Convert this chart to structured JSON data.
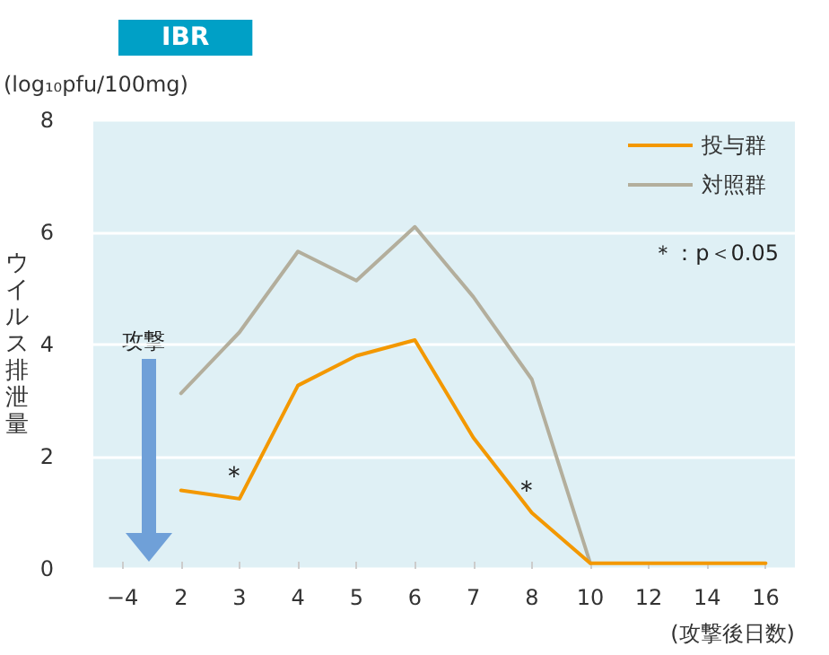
{
  "chart_data": {
    "type": "line",
    "title": "IBR",
    "ylabel": "ウイルス排泄量",
    "xlabel": "(攻撃後日数)",
    "categories": [
      "−4",
      "2",
      "3",
      "4",
      "5",
      "6",
      "7",
      "8",
      "10",
      "12",
      "14",
      "16"
    ],
    "series": [
      {
        "name": "投与群",
        "color": "#f39800",
        "values": [
          null,
          1.4,
          1.25,
          3.27,
          3.8,
          4.08,
          2.34,
          1.0,
          0.1,
          0.1,
          0.1,
          0.1
        ]
      },
      {
        "name": "対照群",
        "color": "#b3ae9c",
        "values": [
          null,
          3.13,
          4.22,
          5.66,
          5.14,
          6.1,
          4.85,
          3.38,
          0.1,
          null,
          null,
          null
        ]
      }
    ],
    "ylim": [
      0,
      8
    ],
    "yticks": [
      0,
      2,
      4,
      6,
      8
    ],
    "grid": "y",
    "legend": "top right",
    "marker": "none",
    "line_style": "solid",
    "annotations": [
      "(log₁₀pfu/100mg)",
      "攻撃",
      "＊：p＜0.05",
      {
        "text": "＊",
        "x": "3",
        "y": 1.25
      },
      {
        "text": "＊",
        "x": "8",
        "y": 1.0
      }
    ]
  }
}
